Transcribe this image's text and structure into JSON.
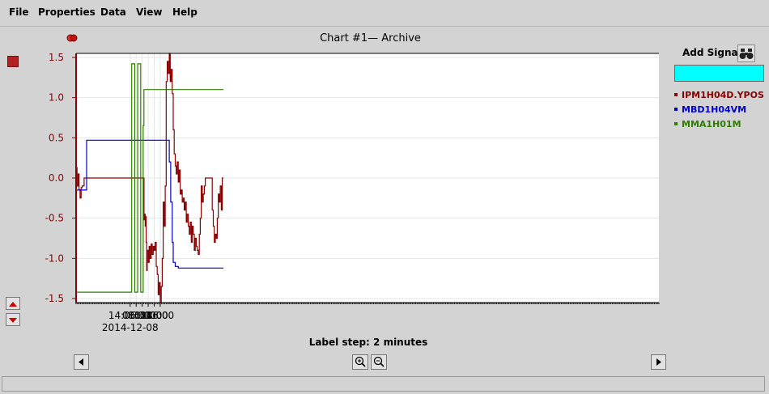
{
  "menu": [
    "File",
    "Properties",
    "Data",
    "View",
    "Help"
  ],
  "chart_title": "Chart #1— Archive",
  "add_signal": "Add Signal",
  "label_step": "Label step: 2 minutes",
  "chart_data": {
    "type": "line",
    "title": "Chart #1— Archive",
    "xlabel": "",
    "ylabel": "",
    "xlim": [
      "2014-12-08 13:48",
      "2014-12-08 17:02"
    ],
    "ylim": [
      -1.55,
      1.55
    ],
    "y_ticks": [
      1.5,
      1.0,
      0.5,
      0.0,
      -0.5,
      -1.0,
      -1.5
    ],
    "y_tick_labels": [
      "1.5",
      "1.0",
      "0.5",
      "0.0",
      "-0.5",
      "-1.0",
      "-1.5"
    ],
    "x_ticks": [
      "14:06",
      "14:08",
      "14:10",
      "14:12",
      "14:14",
      "14:16"
    ],
    "x_tick_labels": [
      "14:06:00",
      "08:00",
      "10:00",
      "12:00",
      "14:00",
      "16:00"
    ],
    "x_date_label": "2014-12-08",
    "grid": true,
    "legend_position": "right",
    "series": [
      {
        "name": "IPM1H04D.YPOS",
        "color": "#8b0000",
        "points": [
          [
            "13:48:00",
            0.13
          ],
          [
            "13:48:20",
            -0.1
          ],
          [
            "13:48:40",
            0.05
          ],
          [
            "13:49:00",
            -0.15
          ],
          [
            "13:49:20",
            -0.25
          ],
          [
            "13:49:40",
            -0.12
          ],
          [
            "13:50:00",
            -0.1
          ],
          [
            "13:50:40",
            0.0
          ],
          [
            "14:00:00",
            0.0
          ],
          [
            "14:08:00",
            0.0
          ],
          [
            "14:10:30",
            0.0
          ],
          [
            "14:10:36",
            -0.52
          ],
          [
            "14:10:50",
            -0.45
          ],
          [
            "14:11:00",
            -0.6
          ],
          [
            "14:11:10",
            -0.48
          ],
          [
            "14:11:20",
            -0.8
          ],
          [
            "14:11:30",
            -1.15
          ],
          [
            "14:11:40",
            -0.9
          ],
          [
            "14:12:00",
            -1.05
          ],
          [
            "14:12:20",
            -0.85
          ],
          [
            "14:12:40",
            -1.0
          ],
          [
            "14:13:00",
            -0.82
          ],
          [
            "14:13:20",
            -0.95
          ],
          [
            "14:13:40",
            -0.85
          ],
          [
            "14:14:00",
            -0.9
          ],
          [
            "14:14:20",
            -0.8
          ],
          [
            "14:14:40",
            -1.1
          ],
          [
            "14:15:00",
            -1.2
          ],
          [
            "14:15:20",
            -1.45
          ],
          [
            "14:15:40",
            -1.3
          ],
          [
            "14:16:00",
            -1.55
          ],
          [
            "14:16:20",
            -1.35
          ],
          [
            "14:16:40",
            -1.0
          ],
          [
            "14:17:00",
            -0.3
          ],
          [
            "14:17:20",
            -0.6
          ],
          [
            "14:17:40",
            -0.1
          ],
          [
            "14:18:00",
            1.2
          ],
          [
            "14:18:20",
            1.45
          ],
          [
            "14:18:40",
            1.3
          ],
          [
            "14:19:00",
            1.55
          ],
          [
            "14:19:20",
            1.2
          ],
          [
            "14:19:40",
            1.35
          ],
          [
            "14:20:00",
            1.05
          ],
          [
            "14:20:20",
            0.6
          ],
          [
            "14:20:40",
            0.3
          ],
          [
            "14:21:00",
            0.15
          ],
          [
            "14:21:20",
            0.05
          ],
          [
            "14:21:40",
            0.2
          ],
          [
            "14:22:00",
            -0.05
          ],
          [
            "14:22:20",
            0.1
          ],
          [
            "14:22:40",
            -0.2
          ],
          [
            "14:23:00",
            -0.15
          ],
          [
            "14:23:20",
            -0.3
          ],
          [
            "14:23:40",
            -0.25
          ],
          [
            "14:24:00",
            -0.4
          ],
          [
            "14:24:20",
            -0.3
          ],
          [
            "14:24:40",
            -0.55
          ],
          [
            "14:25:00",
            -0.45
          ],
          [
            "14:25:20",
            -0.6
          ],
          [
            "14:25:40",
            -0.7
          ],
          [
            "14:26:00",
            -0.55
          ],
          [
            "14:26:20",
            -0.8
          ],
          [
            "14:26:40",
            -0.6
          ],
          [
            "14:27:00",
            -0.7
          ],
          [
            "14:27:20",
            -0.9
          ],
          [
            "14:27:40",
            -0.75
          ],
          [
            "14:28:00",
            -0.85
          ],
          [
            "14:28:20",
            -0.9
          ],
          [
            "14:28:40",
            -0.95
          ],
          [
            "14:29:00",
            -0.7
          ],
          [
            "14:29:20",
            -0.5
          ],
          [
            "14:29:40",
            -0.1
          ],
          [
            "14:30:00",
            -0.3
          ],
          [
            "14:30:20",
            -0.2
          ],
          [
            "14:30:40",
            -0.1
          ],
          [
            "14:31:00",
            0.0
          ],
          [
            "14:32:00",
            0.0
          ],
          [
            "14:33:00",
            0.0
          ],
          [
            "14:33:20",
            -0.4
          ],
          [
            "14:33:40",
            -0.6
          ],
          [
            "14:34:00",
            -0.8
          ],
          [
            "14:34:20",
            -0.7
          ],
          [
            "14:34:40",
            -0.75
          ],
          [
            "14:35:00",
            -0.5
          ],
          [
            "14:35:20",
            -0.2
          ],
          [
            "14:35:40",
            -0.3
          ],
          [
            "14:36:00",
            -0.1
          ],
          [
            "14:36:20",
            -0.4
          ],
          [
            "14:36:40",
            0.0
          ],
          [
            "14:37:00",
            0.0
          ]
        ]
      },
      {
        "name": "MBD1H04VM",
        "color": "#0000cc",
        "points": [
          [
            "13:48:00",
            -0.15
          ],
          [
            "13:51:20",
            -0.15
          ],
          [
            "13:51:30",
            0.47
          ],
          [
            "14:18:40",
            0.47
          ],
          [
            "14:19:00",
            0.2
          ],
          [
            "14:19:30",
            -0.3
          ],
          [
            "14:20:00",
            -0.8
          ],
          [
            "14:20:20",
            -1.05
          ],
          [
            "14:21:00",
            -1.1
          ],
          [
            "14:22:00",
            -1.12
          ],
          [
            "14:37:00",
            -1.12
          ]
        ]
      },
      {
        "name": "MMA1H01M",
        "color": "#2e7d00",
        "points": [
          [
            "13:48:00",
            -1.42
          ],
          [
            "13:55:00",
            -1.42
          ],
          [
            "14:06:30",
            1.42
          ],
          [
            "14:07:30",
            -1.42
          ],
          [
            "14:08:30",
            1.42
          ],
          [
            "14:09:30",
            -1.42
          ],
          [
            "14:10:20",
            0.65
          ],
          [
            "14:10:35",
            1.1
          ],
          [
            "14:37:00",
            1.1
          ]
        ]
      }
    ]
  }
}
